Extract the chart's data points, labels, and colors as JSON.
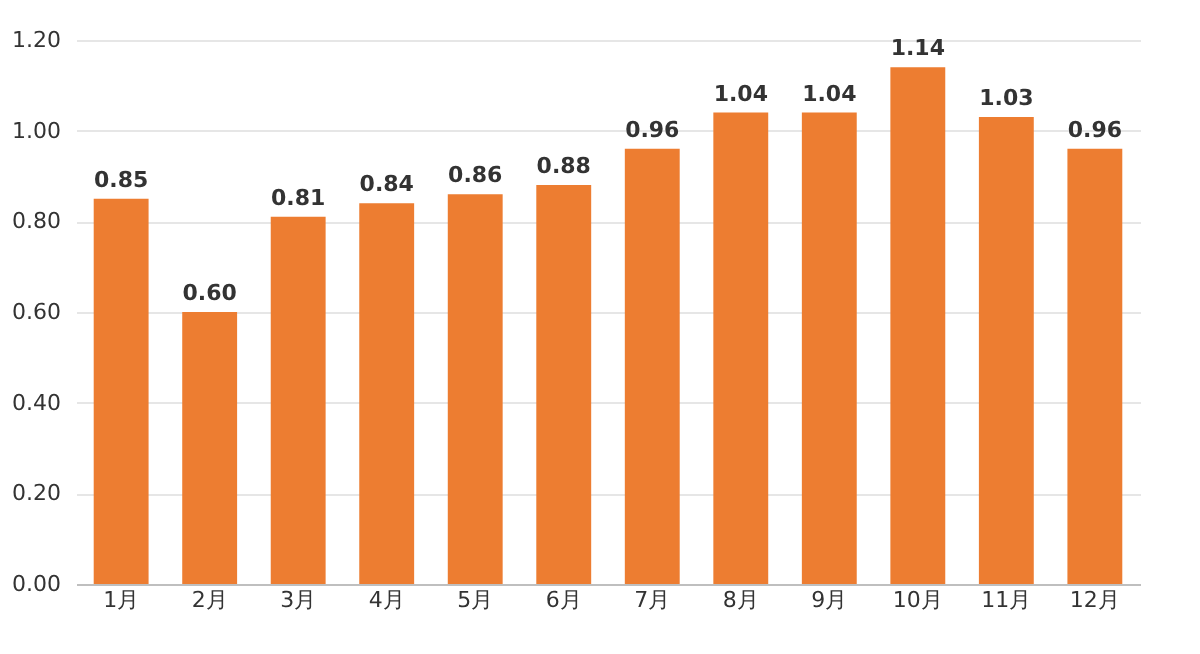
{
  "chart_data": {
    "type": "bar",
    "categories": [
      "1月",
      "2月",
      "3月",
      "4月",
      "5月",
      "6月",
      "7月",
      "8月",
      "9月",
      "10月",
      "11月",
      "12月"
    ],
    "series": [
      {
        "color": "#ed7d31",
        "values": [
          0.85,
          0.6,
          0.81,
          0.84,
          0.86,
          0.88,
          0.96,
          1.04,
          1.04,
          1.14,
          1.03,
          0.96
        ],
        "value_labels": [
          "0.85",
          "0.60",
          "0.81",
          "0.84",
          "0.86",
          "0.88",
          "0.96",
          "1.04",
          "1.04",
          "1.14",
          "1.03",
          "0.96"
        ]
      }
    ],
    "ylim": [
      0,
      1.2
    ],
    "yticks": [
      {
        "value": 0,
        "label": "0.00"
      },
      {
        "value": 0.2,
        "label": "0.20"
      },
      {
        "value": 0.4,
        "label": "0.40"
      },
      {
        "value": 0.6,
        "label": "0.60"
      },
      {
        "value": 0.8,
        "label": "0.80"
      },
      {
        "value": 1,
        "label": "1.00"
      },
      {
        "value": 1.2,
        "label": "1.20"
      }
    ],
    "grid": "y"
  }
}
